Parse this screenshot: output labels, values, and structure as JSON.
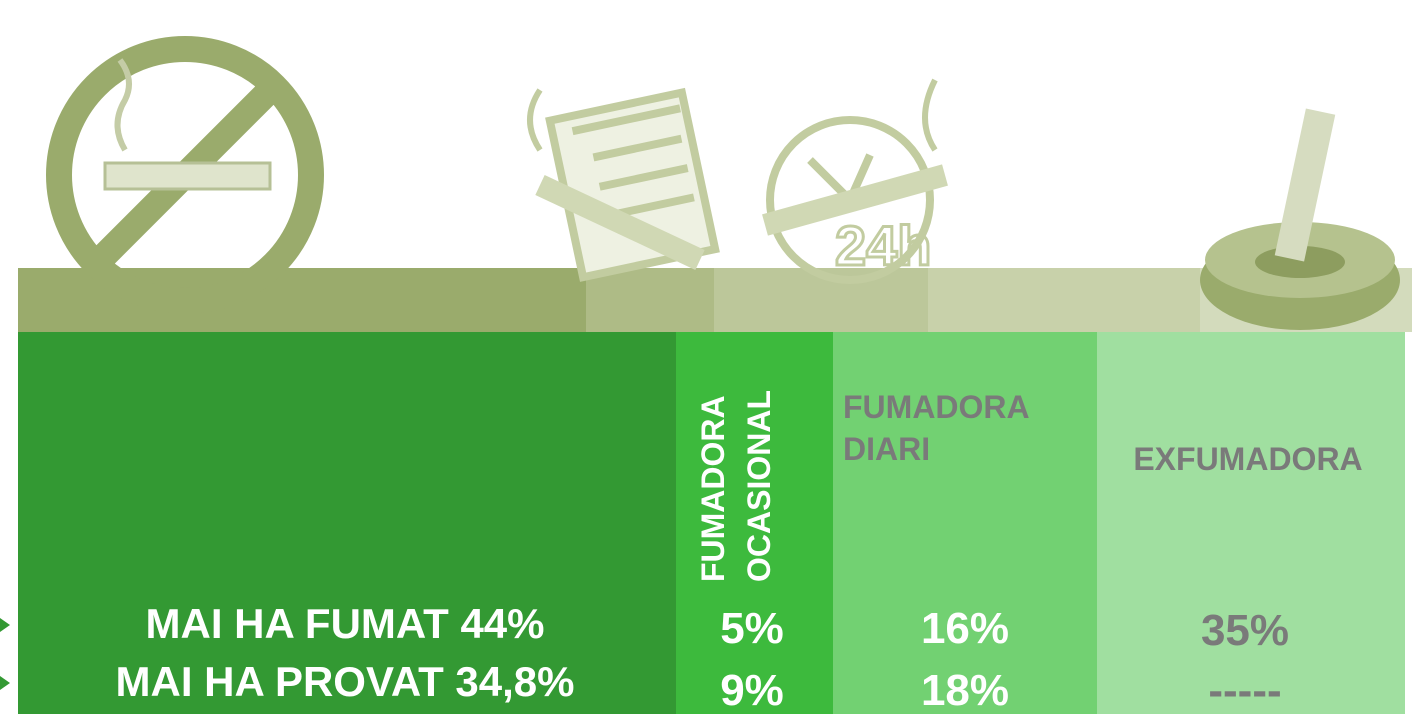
{
  "never": {
    "lines": [
      "MAI HA FUMAT 44%",
      "MAI HA PROVAT 34,8%"
    ]
  },
  "occasional": {
    "label": [
      "FUMADORA",
      "OCASIONAL"
    ],
    "values": [
      "5%",
      "9%"
    ]
  },
  "daily": {
    "label": [
      "FUMADORA",
      "DIARI"
    ],
    "values": [
      "16%",
      "18%"
    ]
  },
  "former": {
    "label": [
      "EXFUMADORA"
    ],
    "values": [
      "35%",
      "-----"
    ]
  }
}
